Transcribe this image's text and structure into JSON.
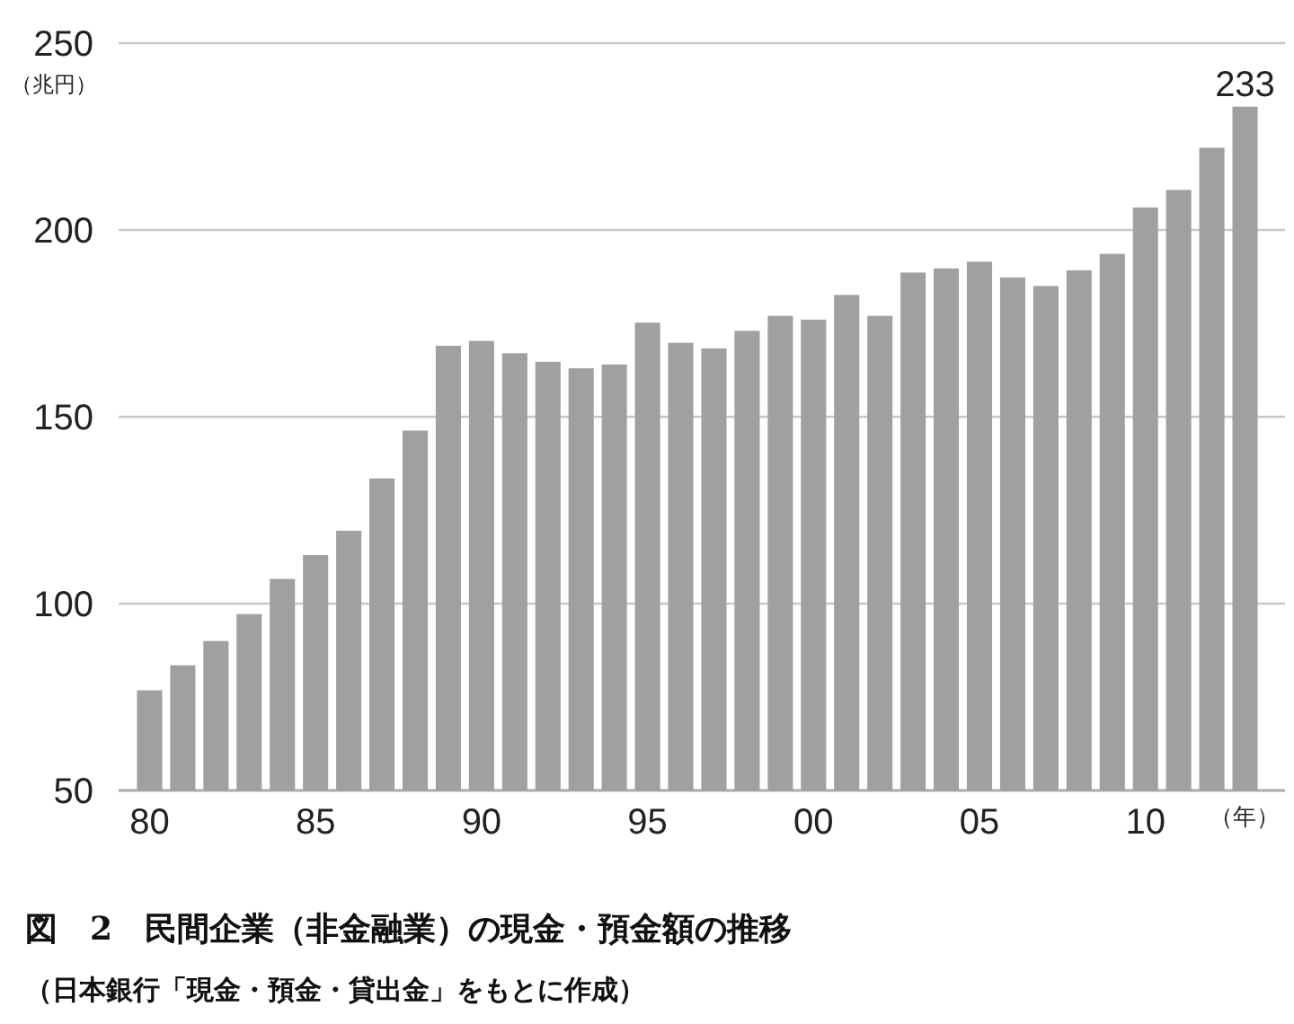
{
  "chart_data": {
    "type": "bar",
    "title": "図　2　民間企業（非金融業）の現金・預金額の推移",
    "annotations": [
      "（日本銀行「現金・預金・貸出金」をもとに作成）"
    ],
    "xlabel": "（年）",
    "ylabel": "（兆円）",
    "categories": [
      "80",
      null,
      null,
      null,
      null,
      "85",
      null,
      null,
      null,
      null,
      "90",
      null,
      null,
      null,
      null,
      "95",
      null,
      null,
      null,
      null,
      "00",
      null,
      null,
      null,
      null,
      "05",
      null,
      null,
      null,
      null,
      "10",
      null,
      null,
      null
    ],
    "values": [
      76.8,
      83.5,
      90,
      97.2,
      106.6,
      113,
      119.5,
      133.5,
      146.3,
      169,
      170.3,
      167,
      164.7,
      163,
      164,
      175.2,
      169.8,
      168.3,
      173,
      177,
      176,
      182.6,
      177,
      188.6,
      189.7,
      191.5,
      187.3,
      185,
      189.2,
      193.6,
      206,
      210.7,
      222,
      233
    ],
    "value_labels": [
      null,
      null,
      null,
      null,
      null,
      null,
      null,
      null,
      null,
      null,
      null,
      null,
      null,
      null,
      null,
      null,
      null,
      null,
      null,
      null,
      null,
      null,
      null,
      null,
      null,
      null,
      null,
      null,
      null,
      null,
      null,
      null,
      null,
      "233"
    ],
    "color": "#a0a0a0",
    "ylim": [
      50,
      250
    ],
    "yticks": [
      50,
      100,
      150,
      200,
      250
    ],
    "grid": "y"
  }
}
